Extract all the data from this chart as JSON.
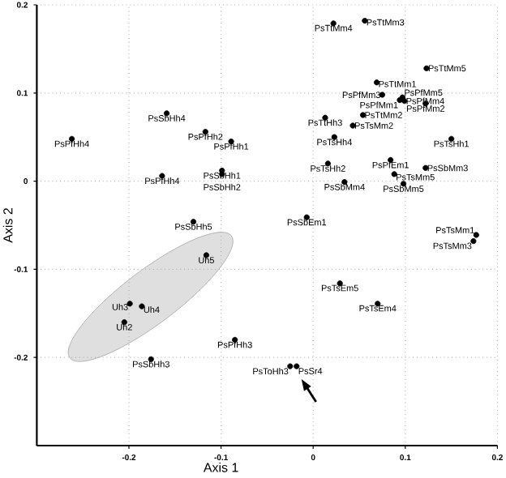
{
  "chart_data": {
    "type": "scatter",
    "xlabel": "Axis 1",
    "ylabel": "Axis 2",
    "xlim": [
      -0.3,
      0.2
    ],
    "ylim": [
      -0.3,
      0.2
    ],
    "xticks": [
      -0.2,
      -0.1,
      0,
      0.1,
      0.2
    ],
    "yticks": [
      -0.2,
      -0.1,
      0,
      0.1,
      0.2
    ],
    "grid": true,
    "series": [
      {
        "color": "#000000",
        "x": [
          -0.262,
          -0.159,
          -0.117,
          -0.089,
          -0.164,
          -0.099,
          -0.099,
          -0.13,
          0.022,
          0.056,
          0.123,
          0.069,
          0.075,
          0.094,
          0.097,
          0.099,
          0.122,
          0.054,
          0.013,
          0.043,
          0.023,
          0.15,
          0.016,
          0.084,
          0.122,
          0.088,
          0.034,
          0.098,
          -0.007,
          0.177,
          0.174,
          0.029,
          0.07,
          -0.025,
          -0.018,
          -0.085,
          -0.176
        ],
        "values": [
          0.048,
          0.077,
          0.056,
          0.045,
          0.006,
          0.012,
          0.008,
          -0.046,
          0.179,
          0.182,
          0.128,
          0.112,
          0.098,
          0.092,
          0.095,
          0.091,
          0.088,
          0.075,
          0.072,
          0.063,
          0.05,
          0.048,
          0.02,
          0.024,
          0.015,
          0.008,
          -0.001,
          -0.003,
          -0.041,
          -0.061,
          -0.068,
          -0.116,
          -0.139,
          -0.21,
          -0.21,
          -0.18,
          -0.202
        ]
      },
      {
        "color": "#000000",
        "x": [
          -0.116,
          -0.199,
          -0.186,
          -0.205
        ],
        "values": [
          -0.084,
          -0.139,
          -0.142,
          -0.16
        ]
      }
    ],
    "annotations": [
      {
        "text": "PsPfHh4",
        "x": -0.262,
        "y": 0.048
      },
      {
        "text": "PsSbHh4",
        "x": -0.159,
        "y": 0.077
      },
      {
        "text": "PsPfHh2",
        "x": -0.117,
        "y": 0.056
      },
      {
        "text": "PsPfHh1",
        "x": -0.089,
        "y": 0.045
      },
      {
        "text": "PsPfHh4",
        "x": -0.164,
        "y": 0.006
      },
      {
        "text": "PsSbHh1",
        "x": -0.099,
        "y": 0.012
      },
      {
        "text": "PsSbHh2",
        "x": -0.099,
        "y": 0.008
      },
      {
        "text": "PsSbHh5",
        "x": -0.13,
        "y": -0.046
      },
      {
        "text": "PsTtMm4",
        "x": 0.022,
        "y": 0.179
      },
      {
        "text": "PsTtMm3",
        "x": 0.056,
        "y": 0.182
      },
      {
        "text": "PsTtMm5",
        "x": 0.123,
        "y": 0.128
      },
      {
        "text": "PsTtMm1",
        "x": 0.069,
        "y": 0.112
      },
      {
        "text": "PsPfMm3",
        "x": 0.075,
        "y": 0.098
      },
      {
        "text": "PsPfMm1",
        "x": 0.094,
        "y": 0.092
      },
      {
        "text": "PsPfMm5",
        "x": 0.097,
        "y": 0.095
      },
      {
        "text": "PsPfMm4",
        "x": 0.099,
        "y": 0.091
      },
      {
        "text": "PsPfMm2",
        "x": 0.122,
        "y": 0.088
      },
      {
        "text": "PsTtMm2",
        "x": 0.054,
        "y": 0.075
      },
      {
        "text": "PsTtHh3",
        "x": 0.013,
        "y": 0.072
      },
      {
        "text": "PsTsMm2",
        "x": 0.043,
        "y": 0.063
      },
      {
        "text": "PsTsHh4",
        "x": 0.023,
        "y": 0.05
      },
      {
        "text": "PsTsHh1",
        "x": 0.15,
        "y": 0.048
      },
      {
        "text": "PsTsHh2",
        "x": 0.016,
        "y": 0.02
      },
      {
        "text": "PsPfEm1",
        "x": 0.084,
        "y": 0.024
      },
      {
        "text": "PsSbMm3",
        "x": 0.122,
        "y": 0.015
      },
      {
        "text": "PsTsMm5",
        "x": 0.088,
        "y": 0.008
      },
      {
        "text": "PsSbMm4",
        "x": 0.034,
        "y": -0.001
      },
      {
        "text": "PsSbMm5",
        "x": 0.098,
        "y": -0.003
      },
      {
        "text": "PsSbEm1",
        "x": -0.007,
        "y": -0.041
      },
      {
        "text": "PsTsMm1",
        "x": 0.177,
        "y": -0.061
      },
      {
        "text": "PsTsMm3",
        "x": 0.174,
        "y": -0.068
      },
      {
        "text": "PsTsEm5",
        "x": 0.029,
        "y": -0.116
      },
      {
        "text": "PsTsEm4",
        "x": 0.07,
        "y": -0.139
      },
      {
        "text": "PsToHh3",
        "x": -0.025,
        "y": -0.21
      },
      {
        "text": "PsSr4",
        "x": -0.018,
        "y": -0.21
      },
      {
        "text": "PsPfHh3",
        "x": -0.085,
        "y": -0.18
      },
      {
        "text": "PsSbHh3",
        "x": -0.176,
        "y": -0.202
      },
      {
        "text": "Uh5",
        "x": -0.116,
        "y": -0.084
      },
      {
        "text": "Uh3",
        "x": -0.199,
        "y": -0.139
      },
      {
        "text": "Uh4",
        "x": -0.186,
        "y": -0.142
      },
      {
        "text": "Uh2",
        "x": -0.205,
        "y": -0.16
      }
    ]
  }
}
